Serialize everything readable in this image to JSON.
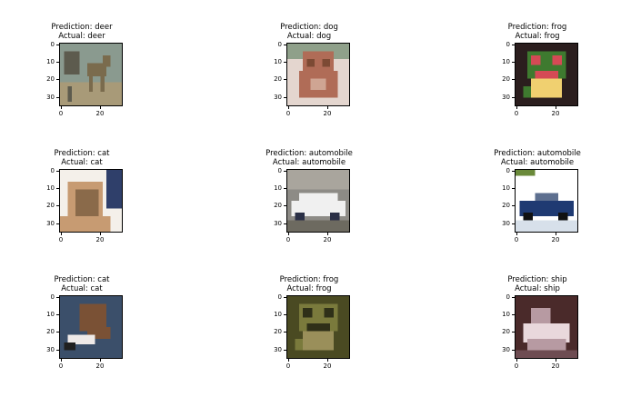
{
  "figure": {
    "panels": [
      {
        "prediction": "Prediction: deer",
        "actual": "Actual: deer",
        "image_subject": "deer",
        "colors": [
          "#8a9a8f",
          "#7a6b4d",
          "#a89a78",
          "#5d5b4e"
        ]
      },
      {
        "prediction": "Prediction: dog",
        "actual": "Actual: dog",
        "image_subject": "dog",
        "colors": [
          "#e4d6cf",
          "#b06c57",
          "#7c4a34",
          "#cfa593"
        ]
      },
      {
        "prediction": "Prediction: frog",
        "actual": "Actual: frog",
        "image_subject": "frog",
        "colors": [
          "#2b1e1e",
          "#3e7a2f",
          "#d54a55",
          "#f0d070"
        ]
      },
      {
        "prediction": "Prediction: cat",
        "actual": "Actual: cat",
        "image_subject": "cat",
        "colors": [
          "#f4f0ea",
          "#8a6a4a",
          "#c79b72",
          "#2f3f6a"
        ]
      },
      {
        "prediction": "Prediction: automobile",
        "actual": "Actual: automobile",
        "image_subject": "automobile",
        "colors": [
          "#8d8b86",
          "#f0f0f0",
          "#2a2f46",
          "#6d6a60"
        ]
      },
      {
        "prediction": "Prediction: automobile",
        "actual": "Actual: automobile",
        "image_subject": "automobile",
        "colors": [
          "#ffffff",
          "#1f3a72",
          "#5d6f8f",
          "#d7e0ea"
        ]
      },
      {
        "prediction": "Prediction: cat",
        "actual": "Actual: cat",
        "image_subject": "cat",
        "colors": [
          "#3b4f6a",
          "#7a5135",
          "#efeae8",
          "#202020"
        ]
      },
      {
        "prediction": "Prediction: frog",
        "actual": "Actual: frog",
        "image_subject": "frog",
        "colors": [
          "#4a4a22",
          "#7a7a3c",
          "#2f3018",
          "#9a8f5a"
        ]
      },
      {
        "prediction": "Prediction: ship",
        "actual": "Actual: ship",
        "image_subject": "ship",
        "colors": [
          "#4a2a2a",
          "#e9d8dc",
          "#b79aa2",
          "#6e4c52"
        ]
      }
    ],
    "y_ticks": [
      "0",
      "10",
      "20",
      "30"
    ],
    "x_ticks": [
      "0",
      "20"
    ]
  }
}
